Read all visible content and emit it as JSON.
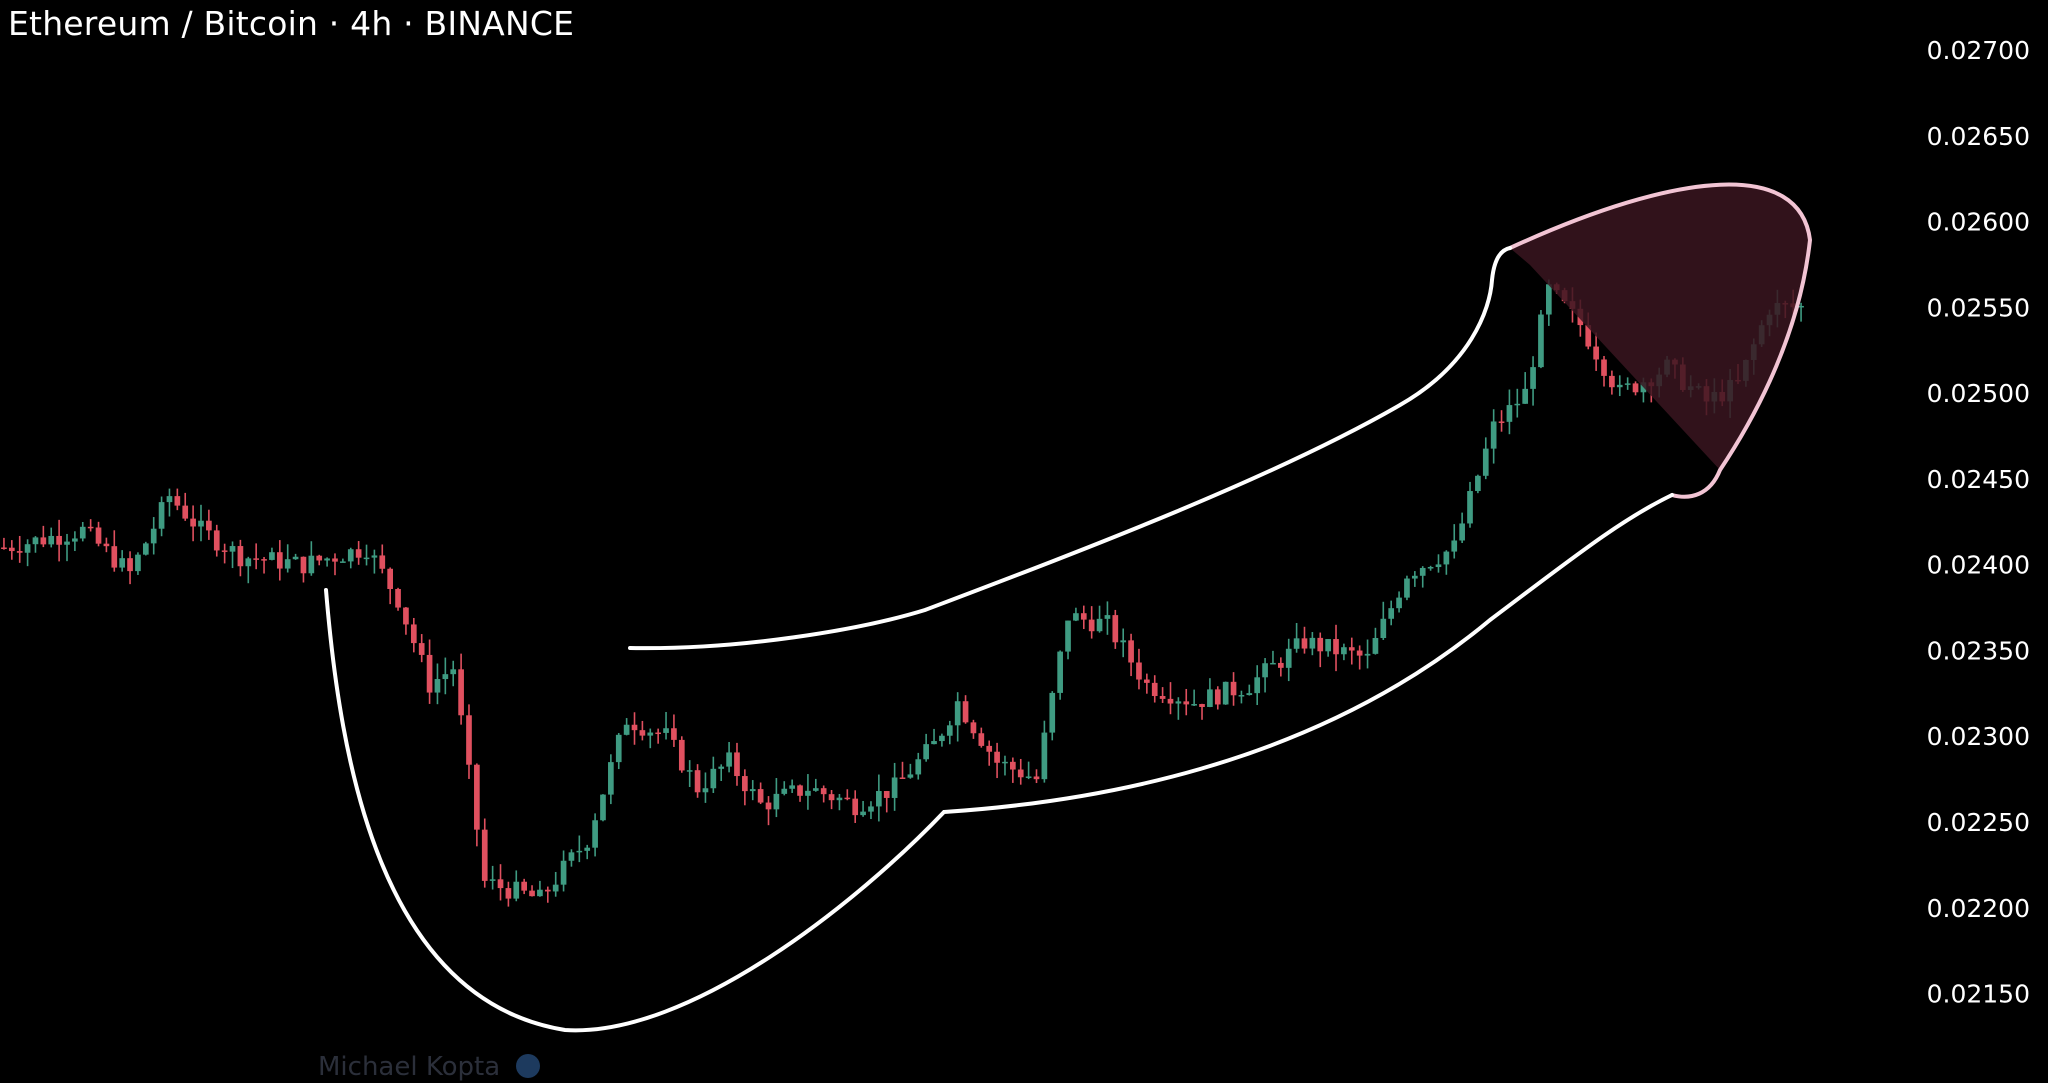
{
  "header": {
    "title": "Ethereum / Bitcoin · 4h · BINANCE"
  },
  "watermark": {
    "text": "Michael Kopta"
  },
  "colors": {
    "background": "#000000",
    "up": "#3f9b82",
    "down": "#e0505f",
    "drawing_line": "#ffffff",
    "highlight_fill": "#3a1520",
    "highlight_stroke": "#f2c4d4"
  },
  "chart_data": {
    "type": "candlestick",
    "title": "Ethereum / Bitcoin · 4h · BINANCE",
    "xlabel": "",
    "ylabel": "",
    "ylim": [
      0.0212,
      0.027
    ],
    "y_ticks": [
      "0.02700",
      "0.02650",
      "0.02600",
      "0.02550",
      "0.02500",
      "0.02450",
      "0.02400",
      "0.02350",
      "0.02300",
      "0.02250",
      "0.02200",
      "0.02150"
    ],
    "grid": false,
    "anchors": [
      [
        0,
        0.0241
      ],
      [
        10,
        0.0242
      ],
      [
        16,
        0.02395
      ],
      [
        21,
        0.0244
      ],
      [
        25,
        0.0242
      ],
      [
        30,
        0.02405
      ],
      [
        38,
        0.024
      ],
      [
        46,
        0.0241
      ],
      [
        50,
        0.0238
      ],
      [
        54,
        0.0233
      ],
      [
        57,
        0.0234
      ],
      [
        61,
        0.02215
      ],
      [
        68,
        0.02205
      ],
      [
        74,
        0.0224
      ],
      [
        79,
        0.0231
      ],
      [
        84,
        0.023
      ],
      [
        88,
        0.0227
      ],
      [
        92,
        0.02285
      ],
      [
        96,
        0.0226
      ],
      [
        102,
        0.0227
      ],
      [
        108,
        0.0226
      ],
      [
        113,
        0.0227
      ],
      [
        118,
        0.02295
      ],
      [
        121,
        0.0232
      ],
      [
        126,
        0.02285
      ],
      [
        131,
        0.02275
      ],
      [
        135,
        0.0237
      ],
      [
        140,
        0.02365
      ],
      [
        145,
        0.0233
      ],
      [
        151,
        0.0232
      ],
      [
        158,
        0.0233
      ],
      [
        165,
        0.02355
      ],
      [
        173,
        0.02345
      ],
      [
        178,
        0.02395
      ],
      [
        184,
        0.0241
      ],
      [
        189,
        0.0248
      ],
      [
        193,
        0.025
      ],
      [
        196,
        0.0256
      ],
      [
        200,
        0.0254
      ],
      [
        205,
        0.025
      ],
      [
        211,
        0.02515
      ],
      [
        216,
        0.02495
      ],
      [
        220,
        0.02505
      ],
      [
        224,
        0.0255
      ],
      [
        228,
        0.0255
      ]
    ],
    "candle_count": 229,
    "annotations": [
      {
        "type": "freehand-outline",
        "shape": "drawn outline enclosing the rising price path, ending in a rounded cap at the top right"
      },
      {
        "type": "shaded-region",
        "color": "#3a1520",
        "note": "dark red shaded area at the top right of the outline"
      }
    ]
  }
}
